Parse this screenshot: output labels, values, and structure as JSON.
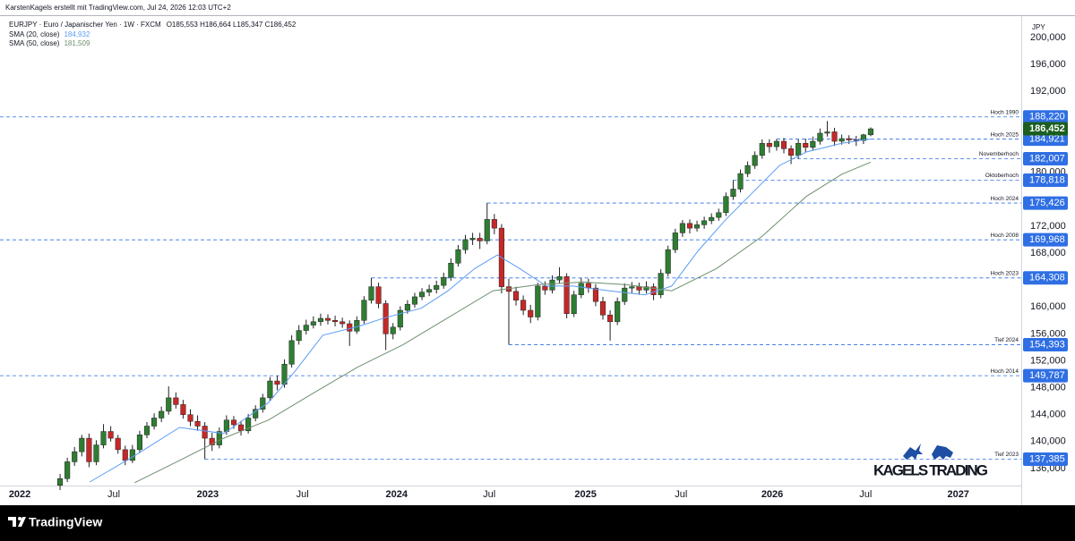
{
  "chart_data": {
    "type": "candlestick",
    "credit": "KarstenKagels erstellt mit TradingView.com, Jul 24, 2026 12:03 UTC+2",
    "symbol": "EURJPY · Euro / Japanischer Yen · 1W · FXCM",
    "ohlc_text": "O185,553 H186,664 L185,347 C186,452",
    "currency": "JPY",
    "brand": "KAGELS TRADING",
    "platform": "TradingView",
    "up_color": "#2e7d32",
    "down_color": "#c62828",
    "xlim": [
      -8.3,
      132.8
    ],
    "ylim": [
      133.47,
      202.66
    ],
    "xticks": [
      {
        "value": -5.57,
        "label": "2022"
      },
      {
        "value": 7.43,
        "label": "Jul"
      },
      {
        "value": 20.4,
        "label": "2023"
      },
      {
        "value": 33.5,
        "label": "Jul"
      },
      {
        "value": 46.5,
        "label": "2024"
      },
      {
        "value": 59.3,
        "label": "Jul"
      },
      {
        "value": 72.6,
        "label": "2025"
      },
      {
        "value": 85.8,
        "label": "Jul"
      },
      {
        "value": 98.4,
        "label": "2026"
      },
      {
        "value": 111.3,
        "label": "Jul"
      },
      {
        "value": 124.1,
        "label": "2027"
      }
    ],
    "yticks": [
      {
        "value": 200,
        "label": "200,000"
      },
      {
        "value": 196,
        "label": "196,000"
      },
      {
        "value": 192,
        "label": "192,000"
      },
      {
        "value": 180,
        "label": "180,000"
      },
      {
        "value": 172,
        "label": "172,000"
      },
      {
        "value": 168,
        "label": "168,000"
      },
      {
        "value": 160,
        "label": "160,000"
      },
      {
        "value": 156,
        "label": "156,000"
      },
      {
        "value": 152,
        "label": "152,000"
      },
      {
        "value": 148,
        "label": "148,000"
      },
      {
        "value": 144,
        "label": "144,000"
      },
      {
        "value": 140,
        "label": "140,000"
      },
      {
        "value": 136,
        "label": "136,000"
      }
    ],
    "candles": [
      [
        133.5,
        135.2,
        132.8,
        134.5
      ],
      [
        134.5,
        137.6,
        134.0,
        137.0
      ],
      [
        137.0,
        139.2,
        136.4,
        138.5
      ],
      [
        138.5,
        141.0,
        137.8,
        140.5
      ],
      [
        140.5,
        141.2,
        136.2,
        137.0
      ],
      [
        137.0,
        140.2,
        136.5,
        139.5
      ],
      [
        139.5,
        142.6,
        139.0,
        141.5
      ],
      [
        141.5,
        142.3,
        140.0,
        140.5
      ],
      [
        140.5,
        141.0,
        138.2,
        138.8
      ],
      [
        138.8,
        139.4,
        136.5,
        137.2
      ],
      [
        137.2,
        139.5,
        136.8,
        138.8
      ],
      [
        138.8,
        141.6,
        138.3,
        141.0
      ],
      [
        141.0,
        142.9,
        140.5,
        142.3
      ],
      [
        142.3,
        144.2,
        141.8,
        143.5
      ],
      [
        143.5,
        145.2,
        142.9,
        144.5
      ],
      [
        144.5,
        148.2,
        144.0,
        146.5
      ],
      [
        146.5,
        147.3,
        144.9,
        145.5
      ],
      [
        145.5,
        146.2,
        143.4,
        144.0
      ],
      [
        144.0,
        144.8,
        142.3,
        143.0
      ],
      [
        143.0,
        143.9,
        141.6,
        142.3
      ],
      [
        142.3,
        142.9,
        137.385,
        140.5
      ],
      [
        140.5,
        141.3,
        138.6,
        139.5
      ],
      [
        139.5,
        142.1,
        139.0,
        141.5
      ],
      [
        141.5,
        143.9,
        141.0,
        143.2
      ],
      [
        143.2,
        143.8,
        141.9,
        142.5
      ],
      [
        142.5,
        143.1,
        140.9,
        141.6
      ],
      [
        141.6,
        144.1,
        141.2,
        143.5
      ],
      [
        143.5,
        145.4,
        143.0,
        144.8
      ],
      [
        144.8,
        147.1,
        144.3,
        146.5
      ],
      [
        146.5,
        149.6,
        146.0,
        149.0
      ],
      [
        149.0,
        149.8,
        147.6,
        148.5
      ],
      [
        148.5,
        152.2,
        148.0,
        151.5
      ],
      [
        151.5,
        155.8,
        151.0,
        155.0
      ],
      [
        155.0,
        157.3,
        154.4,
        156.5
      ],
      [
        156.5,
        158.1,
        155.9,
        157.3
      ],
      [
        157.3,
        158.6,
        156.8,
        157.8
      ],
      [
        157.8,
        159.0,
        157.2,
        158.3
      ],
      [
        158.3,
        158.9,
        157.4,
        158.0
      ],
      [
        158.0,
        158.7,
        157.1,
        157.8
      ],
      [
        157.8,
        158.4,
        156.9,
        157.5
      ],
      [
        157.5,
        158.0,
        154.2,
        156.4
      ],
      [
        156.4,
        158.6,
        156.0,
        158.0
      ],
      [
        158.0,
        161.6,
        157.5,
        161.0
      ],
      [
        161.0,
        164.308,
        160.5,
        163.0
      ],
      [
        163.0,
        163.6,
        159.8,
        160.5
      ],
      [
        160.5,
        161.0,
        153.6,
        156.0
      ],
      [
        156.0,
        157.6,
        155.2,
        157.0
      ],
      [
        157.0,
        160.1,
        156.5,
        159.5
      ],
      [
        159.5,
        161.0,
        159.0,
        160.4
      ],
      [
        160.4,
        162.1,
        159.9,
        161.5
      ],
      [
        161.5,
        162.8,
        161.0,
        162.2
      ],
      [
        162.2,
        163.3,
        161.6,
        162.6
      ],
      [
        162.6,
        163.9,
        162.0,
        163.2
      ],
      [
        163.2,
        165.1,
        162.7,
        164.4
      ],
      [
        164.4,
        167.2,
        163.9,
        166.5
      ],
      [
        166.5,
        169.2,
        166.0,
        168.5
      ],
      [
        168.5,
        170.7,
        167.9,
        170.0
      ],
      [
        170.0,
        171.0,
        169.2,
        170.2
      ],
      [
        170.2,
        171.0,
        168.6,
        169.8
      ],
      [
        169.8,
        175.426,
        169.3,
        173.0
      ],
      [
        173.0,
        173.8,
        170.8,
        171.7
      ],
      [
        171.7,
        172.3,
        162.0,
        163.0
      ],
      [
        163.0,
        164.2,
        154.393,
        162.3
      ],
      [
        162.3,
        163.0,
        160.2,
        161.0
      ],
      [
        161.0,
        161.7,
        158.8,
        159.5
      ],
      [
        159.5,
        160.3,
        157.6,
        158.5
      ],
      [
        158.5,
        163.6,
        158.0,
        163.1
      ],
      [
        163.1,
        163.8,
        161.8,
        162.5
      ],
      [
        162.5,
        164.7,
        162.0,
        164.0
      ],
      [
        164.0,
        165.9,
        163.5,
        164.5
      ],
      [
        164.5,
        165.0,
        158.3,
        159.0
      ],
      [
        159.0,
        162.4,
        158.5,
        161.8
      ],
      [
        161.8,
        164.3,
        161.3,
        163.5
      ],
      [
        163.5,
        164.2,
        162.1,
        162.8
      ],
      [
        162.8,
        163.4,
        160.1,
        160.8
      ],
      [
        160.8,
        161.5,
        158.1,
        158.8
      ],
      [
        158.8,
        159.5,
        155.0,
        157.8
      ],
      [
        157.8,
        161.4,
        157.3,
        160.8
      ],
      [
        160.8,
        163.5,
        160.3,
        162.8
      ],
      [
        162.8,
        163.7,
        162.0,
        163.0
      ],
      [
        163.0,
        163.6,
        161.8,
        162.5
      ],
      [
        162.5,
        163.8,
        162.0,
        163.0
      ],
      [
        163.0,
        163.5,
        161.0,
        161.8
      ],
      [
        161.8,
        165.6,
        161.3,
        165.0
      ],
      [
        165.0,
        169.1,
        164.5,
        168.5
      ],
      [
        168.5,
        171.6,
        168.0,
        171.0
      ],
      [
        171.0,
        172.9,
        170.4,
        172.4
      ],
      [
        172.4,
        173.0,
        170.9,
        171.7
      ],
      [
        171.7,
        172.8,
        171.2,
        172.2
      ],
      [
        172.2,
        173.4,
        171.6,
        172.8
      ],
      [
        172.8,
        173.9,
        172.3,
        173.3
      ],
      [
        173.3,
        174.6,
        172.8,
        174.0
      ],
      [
        174.0,
        177.0,
        173.5,
        176.4
      ],
      [
        176.4,
        178.818,
        175.9,
        177.5
      ],
      [
        177.5,
        180.4,
        177.0,
        179.8
      ],
      [
        179.8,
        181.6,
        179.3,
        181.0
      ],
      [
        181.0,
        183.1,
        180.5,
        182.5
      ],
      [
        182.5,
        184.9,
        182.0,
        184.3
      ],
      [
        184.3,
        184.9,
        182.9,
        183.8
      ],
      [
        183.8,
        184.921,
        183.2,
        184.6
      ],
      [
        184.6,
        185.1,
        182.8,
        183.5
      ],
      [
        183.5,
        184.0,
        181.2,
        182.5
      ],
      [
        182.5,
        184.9,
        182.0,
        184.3
      ],
      [
        184.3,
        185.0,
        183.0,
        183.7
      ],
      [
        183.7,
        185.3,
        183.2,
        184.6
      ],
      [
        184.6,
        186.5,
        184.1,
        185.8
      ],
      [
        185.8,
        187.6,
        185.3,
        186.0
      ],
      [
        186.0,
        186.6,
        183.9,
        184.6
      ],
      [
        184.6,
        185.6,
        184.1,
        185.0
      ],
      [
        185.0,
        185.5,
        184.2,
        184.8
      ],
      [
        184.8,
        185.4,
        183.9,
        184.7
      ],
      [
        184.7,
        185.7,
        184.2,
        185.553
      ],
      [
        185.553,
        186.664,
        185.347,
        186.452
      ]
    ],
    "series": [
      {
        "name": "SMA (20, close)",
        "color": "#5b9cf6",
        "value_label": "184,932",
        "x": [
          4.1,
          10.3,
          16.5,
          22.6,
          28.8,
          32.5,
          36.3,
          41.2,
          44.9,
          49.9,
          53.6,
          57.3,
          60.4,
          63.5,
          67.2,
          70.9,
          75.9,
          80.8,
          84.5,
          88.2,
          92.0,
          95.7,
          99.4,
          103.1,
          108.0,
          112
        ],
        "values": [
          134.0,
          137.9,
          142.1,
          141.2,
          145.8,
          150.5,
          155.8,
          157.1,
          158.4,
          159.8,
          162.4,
          165.7,
          167.7,
          165.7,
          163.1,
          163.1,
          162.4,
          161.8,
          163.1,
          168.4,
          173.0,
          177.0,
          181.0,
          183.0,
          184.3,
          184.932
        ]
      },
      {
        "name": "SMA (50, close)",
        "color": "#6e8f6e",
        "value_label": "181,509",
        "x": [
          10.3,
          16.5,
          22.6,
          28.8,
          35.0,
          41.2,
          47.4,
          53.6,
          59.8,
          66.0,
          72.2,
          78.3,
          84.5,
          90.7,
          96.9,
          103.1,
          108.0,
          112
        ],
        "values": [
          133.9,
          137.2,
          140.5,
          143.2,
          147.2,
          151.1,
          154.4,
          158.4,
          162.4,
          163.3,
          163.7,
          163.3,
          162.4,
          165.7,
          170.4,
          176.4,
          179.7,
          181.509
        ]
      }
    ],
    "last_price": {
      "value": 186.452,
      "label": "186,452",
      "color": "#1b5e20"
    },
    "level_color": "#2f6fe4",
    "levels": [
      {
        "name": "Hoch 1990",
        "value": 188.22,
        "label": "188,220"
      },
      {
        "name": "Hoch 2025",
        "value": 184.921,
        "label": "184,921",
        "start": 99
      },
      {
        "name": "Novemberhoch",
        "value": 182.007,
        "label": "182,007",
        "start": 101
      },
      {
        "name": "Oktoberhoch",
        "value": 178.818,
        "label": "178,818",
        "start": 93
      },
      {
        "name": "Hoch 2024",
        "value": 175.426,
        "label": "175,426",
        "start": 59
      },
      {
        "name": "Hoch 2008",
        "value": 169.968,
        "label": "169,968"
      },
      {
        "name": "Hoch 2023",
        "value": 164.308,
        "label": "164,308",
        "start": 43
      },
      {
        "name": "Tief 2024",
        "value": 154.393,
        "label": "154,393",
        "start": 62
      },
      {
        "name": "Hoch 2014",
        "value": 149.787,
        "label": "149,787"
      },
      {
        "name": "Tief 2023",
        "value": 137.385,
        "label": "137,385",
        "start": 20
      }
    ]
  }
}
